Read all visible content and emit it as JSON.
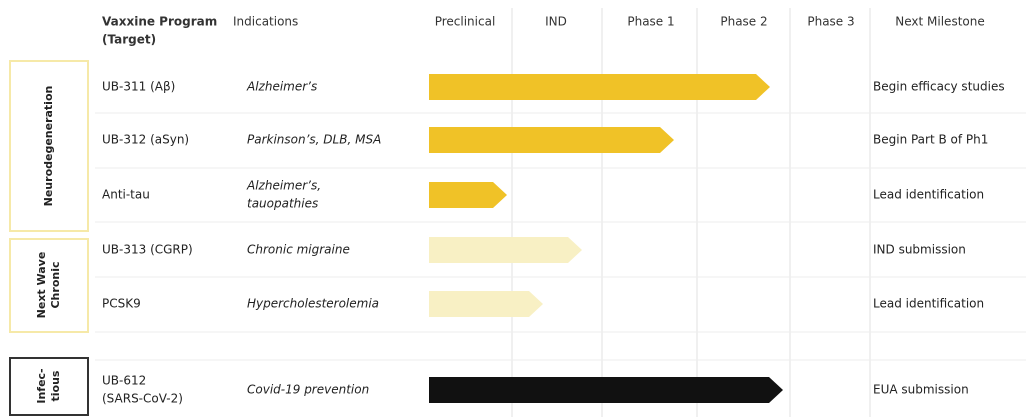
{
  "header": {
    "program": [
      "Vaxxine Program",
      "(Target)"
    ],
    "indications": "Indications",
    "stages": [
      "Preclinical",
      "IND",
      "Phase 1",
      "Phase 2",
      "Phase 3"
    ],
    "milestone": "Next Milestone"
  },
  "groups": [
    {
      "label": [
        "Neurodegeneration"
      ]
    },
    {
      "label": [
        "Next Wave",
        "Chronic"
      ]
    },
    {
      "label": [
        "Infec-",
        "tious"
      ]
    }
  ],
  "rows": [
    {
      "program": [
        "UB-311 (Aβ)"
      ],
      "indication": [
        "Alzheimer’s"
      ],
      "milestone": "Begin efficacy studies"
    },
    {
      "program": [
        "UB-312 (aSyn)"
      ],
      "indication": [
        "Parkinson’s, DLB, MSA"
      ],
      "milestone": "Begin Part B of Ph1"
    },
    {
      "program": [
        "Anti-tau"
      ],
      "indication": [
        "Alzheimer’s,",
        "tauopathies"
      ],
      "milestone": "Lead identification"
    },
    {
      "program": [
        "UB-313 (CGRP)"
      ],
      "indication": [
        "Chronic migraine"
      ],
      "milestone": "IND submission"
    },
    {
      "program": [
        "PCSK9"
      ],
      "indication": [
        "Hypercholesterolemia"
      ],
      "milestone": "Lead identification"
    },
    {
      "program": [
        "UB-612",
        "(SARS-CoV-2)"
      ],
      "indication": [
        "Covid-19 prevention"
      ],
      "milestone": "EUA submission"
    }
  ]
}
